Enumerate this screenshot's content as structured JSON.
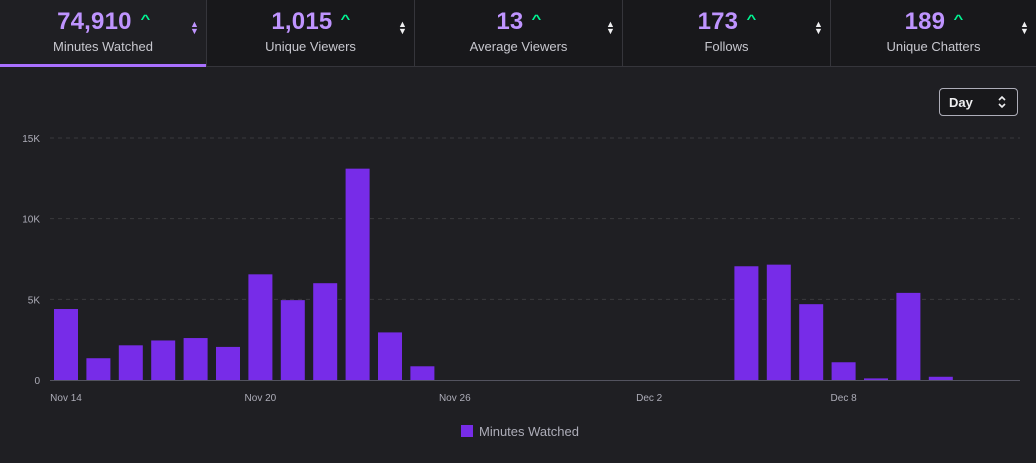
{
  "metrics": [
    {
      "value": "74,910",
      "label": "Minutes Watched"
    },
    {
      "value": "1,015",
      "label": "Unique Viewers"
    },
    {
      "value": "13",
      "label": "Average Viewers"
    },
    {
      "value": "173",
      "label": "Follows"
    },
    {
      "value": "189",
      "label": "Unique Chatters"
    }
  ],
  "interval_select": {
    "value": "Day"
  },
  "colors": {
    "bar": "#772ce8",
    "accent": "#bf94ff",
    "trend_up": "#00f593"
  },
  "chart_data": {
    "type": "bar",
    "x": [
      "Nov 14",
      "Nov 15",
      "Nov 16",
      "Nov 17",
      "Nov 18",
      "Nov 19",
      "Nov 20",
      "Nov 21",
      "Nov 22",
      "Nov 23",
      "Nov 24",
      "Nov 25",
      "Nov 26",
      "Nov 27",
      "Nov 28",
      "Nov 29",
      "Nov 30",
      "Dec 1",
      "Dec 2",
      "Dec 3",
      "Dec 4",
      "Dec 5",
      "Dec 6",
      "Dec 7",
      "Dec 8",
      "Dec 9",
      "Dec 10",
      "Dec 11",
      "Dec 12"
    ],
    "series": [
      {
        "name": "Minutes Watched",
        "values": [
          4400,
          1350,
          2150,
          2450,
          2600,
          2050,
          6550,
          4950,
          6000,
          13100,
          2950,
          850,
          0,
          0,
          0,
          0,
          0,
          0,
          0,
          0,
          0,
          7050,
          7150,
          4700,
          1100,
          100,
          5400,
          200,
          0
        ]
      }
    ],
    "xticks": [
      "Nov 14",
      "Nov 20",
      "Nov 26",
      "Dec 2",
      "Dec 8"
    ],
    "yticks": [
      "0",
      "5K",
      "10K",
      "15K"
    ],
    "ylim": [
      0,
      15000
    ],
    "grid": true,
    "legend_position": "bottom-center"
  }
}
